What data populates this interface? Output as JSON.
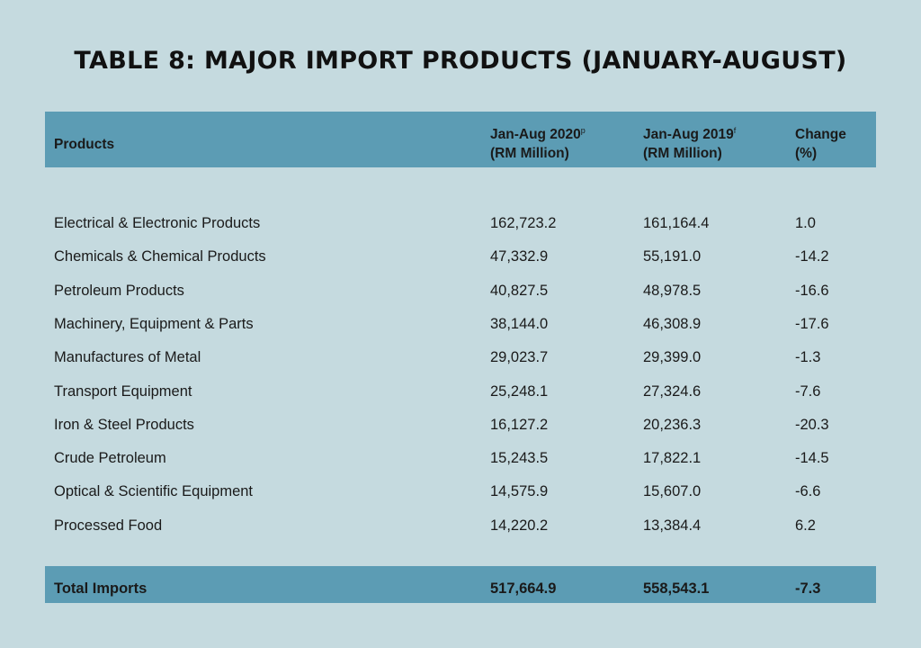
{
  "title": "TABLE 8: MAJOR IMPORT PRODUCTS (JANUARY-AUGUST)",
  "header": {
    "products": "Products",
    "col2020_line1": "Jan-Aug 2020",
    "col2020_sup": "p",
    "col2020_line2": "(RM Million)",
    "col2019_line1": "Jan-Aug 2019",
    "col2019_sup": "f",
    "col2019_line2": "(RM Million)",
    "change_line1": "Change",
    "change_line2": "(%)"
  },
  "rows": [
    {
      "product": "Electrical & Electronic Products",
      "v2020": "162,723.2",
      "v2019": "161,164.4",
      "change": "1.0"
    },
    {
      "product": "Chemicals & Chemical Products",
      "v2020": "47,332.9",
      "v2019": "55,191.0",
      "change": "-14.2"
    },
    {
      "product": "Petroleum Products",
      "v2020": "40,827.5",
      "v2019": "48,978.5",
      "change": "-16.6"
    },
    {
      "product": "Machinery, Equipment & Parts",
      "v2020": "38,144.0",
      "v2019": "46,308.9",
      "change": "-17.6"
    },
    {
      "product": "Manufactures of Metal",
      "v2020": "29,023.7",
      "v2019": "29,399.0",
      "change": "-1.3"
    },
    {
      "product": "Transport Equipment",
      "v2020": "25,248.1",
      "v2019": "27,324.6",
      "change": "-7.6"
    },
    {
      "product": "Iron & Steel Products",
      "v2020": "16,127.2",
      "v2019": "20,236.3",
      "change": "-20.3"
    },
    {
      "product": "Crude Petroleum",
      "v2020": "15,243.5",
      "v2019": "17,822.1",
      "change": "-14.5"
    },
    {
      "product": "Optical & Scientific Equipment",
      "v2020": "14,575.9",
      "v2019": "15,607.0",
      "change": "-6.6"
    },
    {
      "product": "Processed Food",
      "v2020": "14,220.2",
      "v2019": "13,384.4",
      "change": "6.2"
    }
  ],
  "total": {
    "label": "Total Imports",
    "v2020": "517,664.9",
    "v2019": "558,543.1",
    "change": "-7.3"
  }
}
